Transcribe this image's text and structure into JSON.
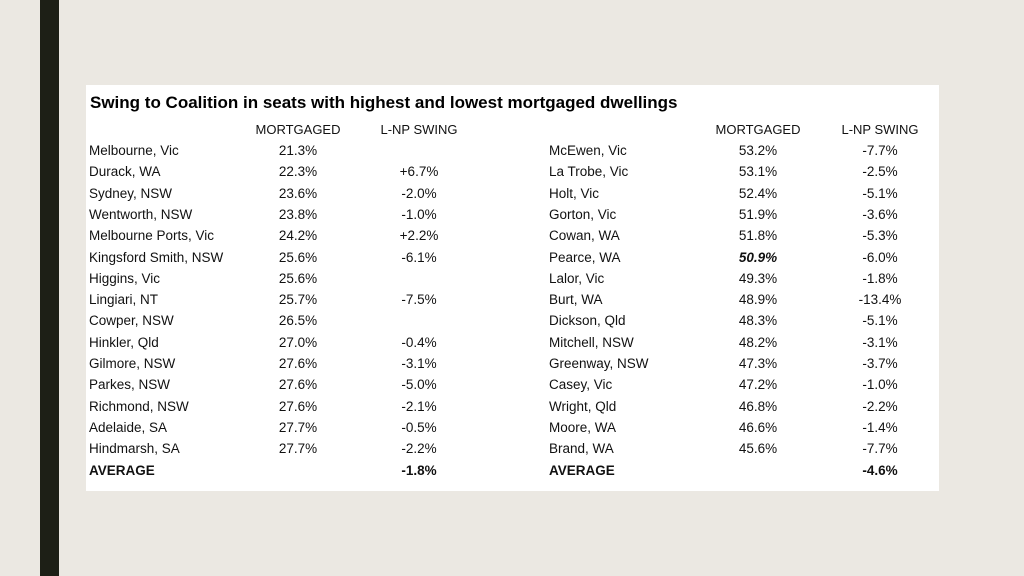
{
  "title": "Swing to Coalition in seats with highest and lowest mortgaged dwellings",
  "headers": {
    "mortgaged": "MORTGAGED",
    "swing": "L-NP SWING"
  },
  "left_table": {
    "rows": [
      {
        "seat": "Melbourne, Vic",
        "mortgaged": "21.3%",
        "swing": ""
      },
      {
        "seat": "Durack, WA",
        "mortgaged": "22.3%",
        "swing": "+6.7%"
      },
      {
        "seat": "Sydney, NSW",
        "mortgaged": "23.6%",
        "swing": "-2.0%"
      },
      {
        "seat": "Wentworth, NSW",
        "mortgaged": "23.8%",
        "swing": "-1.0%"
      },
      {
        "seat": "Melbourne Ports, Vic",
        "mortgaged": "24.2%",
        "swing": "+2.2%"
      },
      {
        "seat": "Kingsford Smith, NSW",
        "mortgaged": "25.6%",
        "swing": "-6.1%"
      },
      {
        "seat": "Higgins, Vic",
        "mortgaged": "25.6%",
        "swing": ""
      },
      {
        "seat": "Lingiari, NT",
        "mortgaged": "25.7%",
        "swing": "-7.5%"
      },
      {
        "seat": "Cowper, NSW",
        "mortgaged": "26.5%",
        "swing": ""
      },
      {
        "seat": "Hinkler, Qld",
        "mortgaged": "27.0%",
        "swing": "-0.4%"
      },
      {
        "seat": "Gilmore, NSW",
        "mortgaged": "27.6%",
        "swing": "-3.1%"
      },
      {
        "seat": "Parkes, NSW",
        "mortgaged": "27.6%",
        "swing": "-5.0%"
      },
      {
        "seat": "Richmond, NSW",
        "mortgaged": "27.6%",
        "swing": "-2.1%"
      },
      {
        "seat": "Adelaide, SA",
        "mortgaged": "27.7%",
        "swing": "-0.5%"
      },
      {
        "seat": "Hindmarsh, SA",
        "mortgaged": "27.7%",
        "swing": "-2.2%"
      }
    ],
    "average_label": "AVERAGE",
    "average_swing": "-1.8%"
  },
  "right_table": {
    "rows": [
      {
        "seat": "McEwen, Vic",
        "mortgaged": "53.2%",
        "swing": "-7.7%"
      },
      {
        "seat": "La Trobe, Vic",
        "mortgaged": "53.1%",
        "swing": "-2.5%"
      },
      {
        "seat": "Holt, Vic",
        "mortgaged": "52.4%",
        "swing": "-5.1%"
      },
      {
        "seat": "Gorton, Vic",
        "mortgaged": "51.9%",
        "swing": "-3.6%"
      },
      {
        "seat": "Cowan, WA",
        "mortgaged": "51.8%",
        "swing": "-5.3%"
      },
      {
        "seat": "Pearce, WA",
        "mortgaged": "50.9%",
        "swing": "-6.0%",
        "emphasis": true
      },
      {
        "seat": "Lalor, Vic",
        "mortgaged": "49.3%",
        "swing": "-1.8%"
      },
      {
        "seat": "Burt, WA",
        "mortgaged": "48.9%",
        "swing": "-13.4%"
      },
      {
        "seat": "Dickson, Qld",
        "mortgaged": "48.3%",
        "swing": "-5.1%"
      },
      {
        "seat": "Mitchell, NSW",
        "mortgaged": "48.2%",
        "swing": "-3.1%"
      },
      {
        "seat": "Greenway, NSW",
        "mortgaged": "47.3%",
        "swing": "-3.7%"
      },
      {
        "seat": "Casey, Vic",
        "mortgaged": "47.2%",
        "swing": "-1.0%"
      },
      {
        "seat": "Wright, Qld",
        "mortgaged": "46.8%",
        "swing": "-2.2%"
      },
      {
        "seat": "Moore, WA",
        "mortgaged": "46.6%",
        "swing": "-1.4%"
      },
      {
        "seat": "Brand, WA",
        "mortgaged": "45.6%",
        "swing": "-7.7%"
      }
    ],
    "average_label": "AVERAGE",
    "average_swing": "-4.6%"
  }
}
